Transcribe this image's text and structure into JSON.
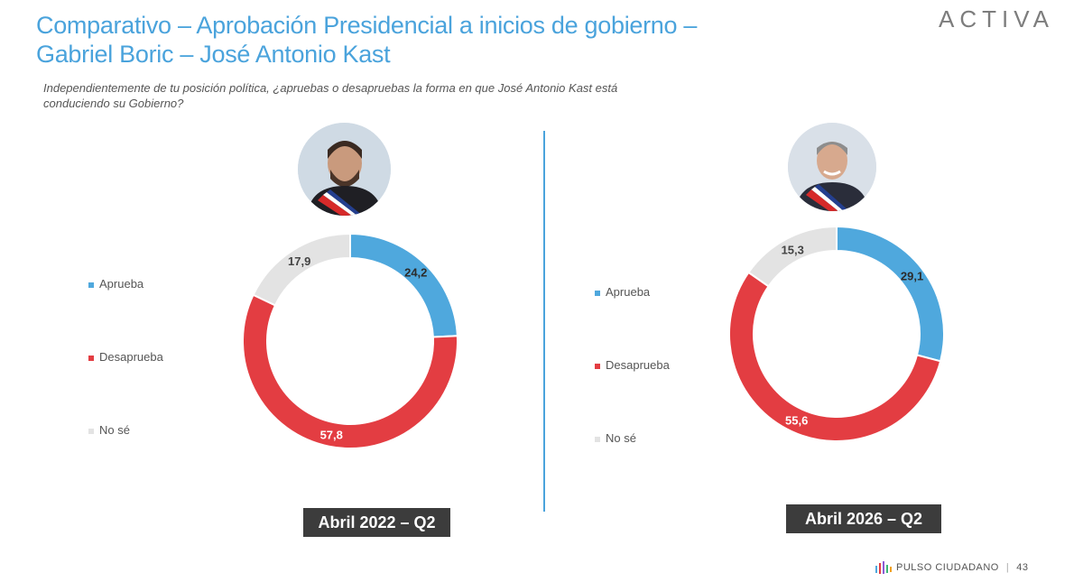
{
  "header": {
    "title_line1": "Comparativo – Aprobación Presidencial a inicios de gobierno –",
    "title_line2": "Gabriel Boric – José Antonio Kast",
    "logo": "ACTIVA",
    "question": "Independientemente de tu posición política, ¿apruebas o desapruebas la forma en que José Antonio Kast está conduciendo su Gobierno?"
  },
  "colors": {
    "accent": "#4aa3dc",
    "aprueba": "#4fa8dd",
    "desaprueba": "#e33d42",
    "nose": "#e3e3e3",
    "label_box": "#3c3c3c"
  },
  "chart_data": [
    {
      "type": "pie",
      "donut": true,
      "period": "Abril 2022 – Q2",
      "categories": [
        "Aprueba",
        "Desaprueba",
        "No sé"
      ],
      "values": [
        24.2,
        57.8,
        17.9
      ],
      "labels": [
        "24,2",
        "57,8",
        "17,9"
      ],
      "legend_position": "left"
    },
    {
      "type": "pie",
      "donut": true,
      "period": "Abril 2026 – Q2",
      "categories": [
        "Aprueba",
        "Desaprueba",
        "No sé"
      ],
      "values": [
        29.1,
        55.6,
        15.3
      ],
      "labels": [
        "29,1",
        "55,6",
        "15,3"
      ],
      "legend_position": "left"
    }
  ],
  "footer": {
    "brand": "PULSO CIUDADANO",
    "page": "43"
  }
}
